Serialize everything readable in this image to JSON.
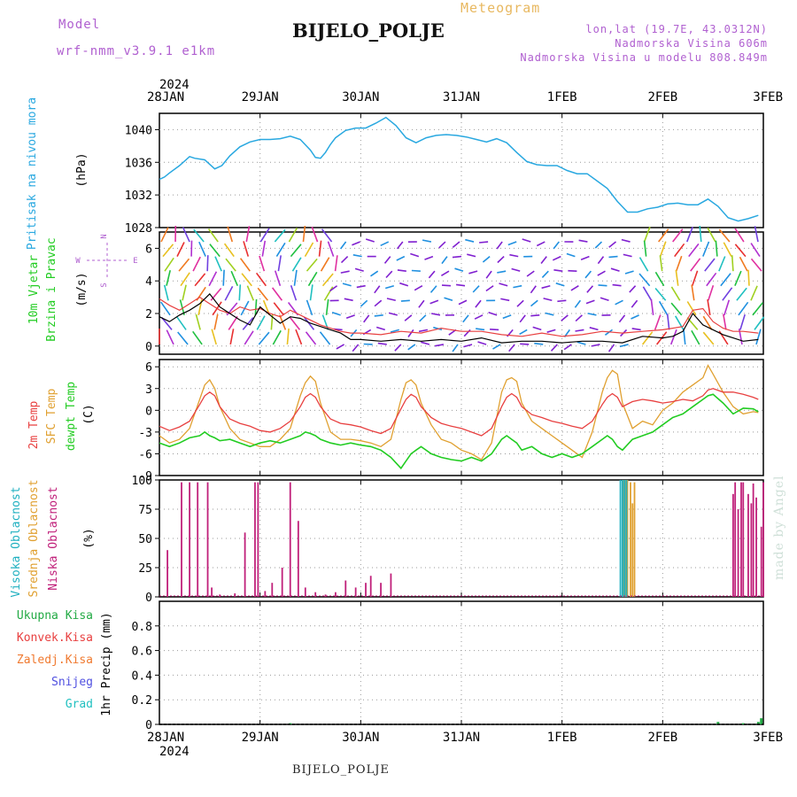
{
  "header": {
    "model_label": "Model",
    "model_name": "wrf-nmm_v3.9.1 e1km",
    "station": "BIJELO_POLJE",
    "chart_kind": "Meteogram",
    "lonlat": "lon,lat (19.7E, 43.0312N)",
    "elevation": "Nadmorska Visina 606m",
    "model_elevation": "Nadmorska Visina u modelu 808.849m"
  },
  "footer": {
    "station": "BIJELO_POLJE",
    "credit": "made by Angel"
  },
  "colors": {
    "pressure": "#29a8e0",
    "t2m": "#e84040",
    "tsfc": "#e0a030",
    "dewpt": "#22cc22",
    "cloud_high": "#20b0c0",
    "cloud_mid": "#e0a030",
    "cloud_low": "#c0207a",
    "wind_speed": "#000000",
    "gust": "#e84040",
    "precip": "#22aa44"
  },
  "chart_data": [
    {
      "type": "line",
      "panel": "pressure",
      "ylabel": [
        "Pritisak na nivou mora",
        "(hPa)"
      ],
      "ylim": [
        1028,
        1042
      ],
      "yticks": [
        1028,
        1032,
        1036,
        1040
      ],
      "x": [
        0,
        0.05,
        0.1,
        0.2,
        0.3,
        0.35,
        0.45,
        0.55,
        0.62,
        0.7,
        0.8,
        0.9,
        1.0,
        1.1,
        1.2,
        1.3,
        1.4,
        1.5,
        1.55,
        1.6,
        1.65,
        1.7,
        1.75,
        1.85,
        1.95,
        2.05,
        2.15,
        2.25,
        2.35,
        2.45,
        2.55,
        2.65,
        2.75,
        2.85,
        2.95,
        3.05,
        3.15,
        3.25,
        3.35,
        3.45,
        3.55,
        3.65,
        3.75,
        3.85,
        3.95,
        4.05,
        4.15,
        4.25,
        4.35,
        4.45,
        4.55,
        4.65,
        4.75,
        4.85,
        4.95,
        5.05,
        5.15,
        5.25,
        5.35,
        5.45,
        5.55,
        5.65,
        5.75,
        5.85,
        5.95
      ],
      "series": [
        {
          "values": [
            1033.9,
            1034.2,
            1034.7,
            1035.6,
            1036.7,
            1036.5,
            1036.3,
            1035.2,
            1035.6,
            1036.8,
            1037.9,
            1038.5,
            1038.8,
            1038.8,
            1038.9,
            1039.2,
            1038.8,
            1037.5,
            1036.6,
            1036.5,
            1037.2,
            1038.2,
            1039.0,
            1039.9,
            1040.2,
            1040.2,
            1040.8,
            1041.5,
            1040.5,
            1039.0,
            1038.4,
            1039.0,
            1039.3,
            1039.4,
            1039.3,
            1039.1,
            1038.8,
            1038.5,
            1038.9,
            1038.4,
            1037.2,
            1036.1,
            1035.7,
            1035.6,
            1035.6,
            1035.0,
            1034.6,
            1034.6,
            1033.7,
            1032.8,
            1031.2,
            1029.9,
            1029.9,
            1030.3,
            1030.5,
            1030.9,
            1031.0,
            1030.8,
            1030.8,
            1031.5,
            1030.6,
            1029.2,
            1028.8,
            1029.1,
            1029.5
          ]
        }
      ]
    },
    {
      "type": "line",
      "panel": "wind",
      "ylabel": [
        "10m Vjetar",
        "Brzina i Pravac",
        "(m/s)"
      ],
      "direction_legend": [
        "N",
        "W",
        "E",
        "S"
      ],
      "ylim": [
        -0.5,
        7
      ],
      "yticks": [
        0,
        2,
        4,
        6
      ],
      "x": [
        0,
        0.1,
        0.2,
        0.3,
        0.4,
        0.5,
        0.6,
        0.7,
        0.8,
        0.9,
        1.0,
        1.1,
        1.2,
        1.3,
        1.4,
        1.5,
        1.6,
        1.7,
        1.8,
        1.9,
        2.0,
        2.2,
        2.4,
        2.6,
        2.8,
        3.0,
        3.2,
        3.4,
        3.6,
        3.8,
        4.0,
        4.2,
        4.4,
        4.6,
        4.8,
        5.0,
        5.1,
        5.2,
        5.3,
        5.4,
        5.5,
        5.6,
        5.7,
        5.8,
        5.95
      ],
      "series": [
        {
          "name": "wind_speed",
          "values": [
            1.8,
            1.5,
            1.9,
            2.2,
            2.6,
            3.2,
            2.4,
            2.0,
            1.6,
            1.3,
            2.4,
            1.9,
            1.4,
            1.8,
            1.7,
            1.4,
            1.2,
            1.0,
            0.8,
            0.4,
            0.4,
            0.3,
            0.4,
            0.3,
            0.4,
            0.3,
            0.5,
            0.2,
            0.3,
            0.3,
            0.2,
            0.3,
            0.3,
            0.2,
            0.6,
            0.5,
            0.6,
            0.9,
            2.0,
            1.3,
            1.0,
            0.7,
            0.5,
            0.3,
            0.4
          ]
        },
        {
          "name": "gust",
          "values": [
            2.9,
            2.5,
            2.2,
            2.6,
            3.0,
            2.6,
            2.2,
            2.0,
            2.4,
            2.2,
            2.3,
            2.0,
            1.8,
            2.2,
            1.9,
            1.6,
            1.3,
            1.1,
            0.9,
            0.8,
            0.8,
            0.7,
            0.9,
            0.8,
            1.1,
            0.9,
            0.9,
            0.7,
            0.6,
            0.8,
            0.6,
            0.7,
            0.9,
            0.8,
            0.9,
            1.0,
            1.1,
            1.2,
            2.2,
            2.3,
            1.5,
            1.1,
            0.9,
            0.9,
            0.8
          ]
        }
      ]
    },
    {
      "type": "line",
      "panel": "temperature",
      "ylabel": [
        "2m Temp",
        "SFC Temp",
        "dewpt Temp",
        "(C)"
      ],
      "ylim": [
        -9,
        7
      ],
      "yticks": [
        -9,
        -6,
        -3,
        0,
        3,
        6
      ],
      "x": [
        0,
        0.1,
        0.2,
        0.3,
        0.4,
        0.45,
        0.5,
        0.55,
        0.6,
        0.7,
        0.8,
        0.9,
        1.0,
        1.1,
        1.2,
        1.3,
        1.4,
        1.45,
        1.5,
        1.55,
        1.6,
        1.7,
        1.8,
        1.9,
        2.0,
        2.1,
        2.2,
        2.3,
        2.4,
        2.45,
        2.5,
        2.55,
        2.6,
        2.7,
        2.8,
        2.9,
        3.0,
        3.1,
        3.2,
        3.3,
        3.4,
        3.45,
        3.5,
        3.55,
        3.6,
        3.7,
        3.8,
        3.9,
        4.0,
        4.1,
        4.2,
        4.3,
        4.4,
        4.45,
        4.5,
        4.55,
        4.6,
        4.7,
        4.8,
        4.9,
        5.0,
        5.1,
        5.2,
        5.3,
        5.4,
        5.45,
        5.5,
        5.6,
        5.7,
        5.8,
        5.9,
        5.95
      ],
      "series": [
        {
          "name": "t2m",
          "values": [
            -2.2,
            -2.8,
            -2.3,
            -1.5,
            0.8,
            2.0,
            2.5,
            2.0,
            0.5,
            -1.2,
            -1.8,
            -2.2,
            -2.8,
            -3.0,
            -2.5,
            -1.5,
            0.5,
            1.8,
            2.3,
            1.8,
            0.5,
            -1.2,
            -1.8,
            -2.0,
            -2.3,
            -2.8,
            -3.2,
            -2.5,
            0.2,
            1.5,
            2.2,
            1.8,
            0.5,
            -1.0,
            -1.8,
            -2.2,
            -2.5,
            -3.0,
            -3.5,
            -2.5,
            0.5,
            1.8,
            2.3,
            1.8,
            0.5,
            -0.6,
            -1.0,
            -1.5,
            -1.8,
            -2.2,
            -2.5,
            -1.5,
            0.8,
            1.8,
            2.3,
            1.8,
            0.5,
            1.2,
            1.5,
            1.3,
            1.0,
            1.2,
            1.5,
            1.3,
            2.0,
            2.8,
            3.0,
            2.5,
            2.5,
            2.2,
            1.8,
            1.5
          ]
        },
        {
          "name": "tsfc",
          "values": [
            -3.5,
            -4.5,
            -4.0,
            -2.5,
            1.5,
            3.5,
            4.2,
            3.0,
            0.5,
            -2.5,
            -4.0,
            -4.5,
            -5.0,
            -5.0,
            -4.0,
            -2.5,
            2.0,
            3.8,
            4.7,
            4.0,
            1.0,
            -3.0,
            -4.0,
            -4.0,
            -4.2,
            -4.5,
            -5.0,
            -4.0,
            1.5,
            3.8,
            4.2,
            3.5,
            1.0,
            -2.0,
            -4.0,
            -4.5,
            -5.5,
            -6.0,
            -6.8,
            -4.5,
            2.5,
            4.2,
            4.5,
            4.0,
            1.0,
            -1.5,
            -2.5,
            -3.5,
            -4.5,
            -5.5,
            -6.5,
            -3.0,
            2.5,
            4.5,
            5.5,
            5.0,
            1.0,
            -2.5,
            -1.5,
            -2.0,
            0.0,
            1.0,
            2.5,
            3.5,
            4.5,
            6.2,
            5.0,
            2.5,
            0.5,
            -0.5,
            -0.2,
            -0.3
          ]
        },
        {
          "name": "dewpt",
          "values": [
            -4.5,
            -5.0,
            -4.5,
            -3.8,
            -3.5,
            -3.0,
            -3.5,
            -3.8,
            -4.2,
            -4.0,
            -4.5,
            -5.0,
            -4.5,
            -4.2,
            -4.5,
            -4.0,
            -3.5,
            -3.0,
            -3.2,
            -3.5,
            -4.0,
            -4.5,
            -4.8,
            -4.5,
            -4.8,
            -5.0,
            -5.5,
            -6.5,
            -8.0,
            -7.0,
            -6.0,
            -5.5,
            -5.0,
            -6.0,
            -6.5,
            -6.8,
            -7.0,
            -6.5,
            -7.0,
            -6.0,
            -4.0,
            -3.5,
            -4.0,
            -4.5,
            -5.5,
            -5.0,
            -6.0,
            -6.5,
            -6.0,
            -6.5,
            -6.0,
            -5.0,
            -4.0,
            -3.5,
            -4.0,
            -5.0,
            -5.5,
            -4.0,
            -3.5,
            -3.0,
            -2.0,
            -1.0,
            -0.5,
            0.5,
            1.5,
            2.0,
            2.2,
            1.0,
            -0.5,
            0.3,
            0.2,
            -0.2
          ]
        }
      ]
    },
    {
      "type": "bar",
      "panel": "clouds",
      "ylabel": [
        "Visoka Oblacnost",
        "Srednja Oblacnost",
        "Niska Oblacnost",
        "(%)"
      ],
      "ylim": [
        0,
        100
      ],
      "yticks": [
        0,
        25,
        50,
        75,
        100
      ],
      "low": {
        "x": [
          0.08,
          0.22,
          0.3,
          0.38,
          0.48,
          0.52,
          0.6,
          0.75,
          0.85,
          0.95,
          0.98,
          1.05,
          1.12,
          1.22,
          1.3,
          1.38,
          1.45,
          1.55,
          1.65,
          1.75,
          1.85,
          1.95,
          2.05,
          2.1,
          2.2,
          2.3,
          5.7,
          5.75,
          5.8,
          5.85,
          5.88,
          5.93,
          5.98,
          6.0,
          5.72,
          5.78,
          5.9
        ],
        "values": [
          40,
          98,
          98,
          98,
          98,
          8,
          2,
          3,
          55,
          98,
          98,
          5,
          12,
          25,
          98,
          65,
          8,
          4,
          2,
          4,
          14,
          8,
          12,
          18,
          12,
          20,
          88,
          75,
          98,
          88,
          80,
          85,
          60,
          98,
          98,
          98,
          97
        ]
      },
      "high": {
        "x": [
          4.58,
          4.6,
          4.62,
          4.64
        ],
        "values": [
          100,
          100,
          100,
          100
        ]
      },
      "mid": {
        "x": [
          4.61,
          4.63,
          4.65,
          4.68,
          4.7,
          4.72
        ],
        "values": [
          100,
          100,
          100,
          98,
          80,
          98
        ]
      }
    },
    {
      "type": "bar",
      "panel": "precipitation",
      "ylabel": [
        "1hr Precip (mm)"
      ],
      "legend": [
        "Ukupna Kisa",
        "Konvek.Kisa",
        "Zaledj.Kisa",
        "Snijeg",
        "Grad"
      ],
      "ylim": [
        0,
        1.0
      ],
      "yticks": [
        0,
        0.2,
        0.4,
        0.6,
        0.8
      ],
      "x": [
        1.3,
        5.55,
        5.8,
        5.95,
        5.98
      ],
      "values": [
        0.01,
        0.02,
        0.01,
        0.02,
        0.05
      ]
    }
  ],
  "time_axis": {
    "year": "2024",
    "labels": [
      "28JAN",
      "29JAN",
      "30JAN",
      "31JAN",
      "1FEB",
      "2FEB",
      "3FEB"
    ]
  }
}
